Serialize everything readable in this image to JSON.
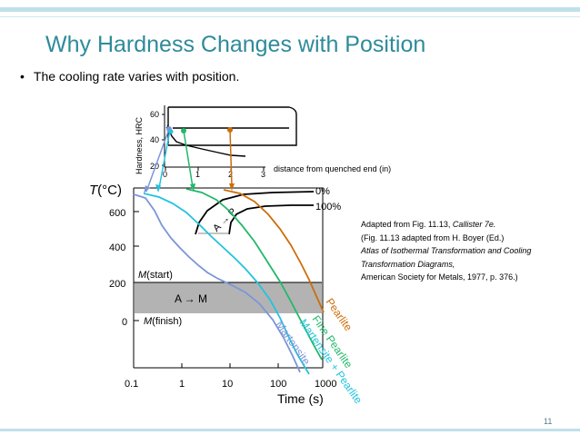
{
  "slide": {
    "title": "Why Hardness Changes with Position",
    "bullet": "The cooling rate varies with position.",
    "page_number": "11"
  },
  "credit": {
    "line1_pre": "Adapted from Fig. 11.13, ",
    "line1_italic": "Callister 7e.",
    "line2": "(Fig. 11.13 adapted from H. Boyer (Ed.)",
    "line3_italic": "Atlas of Isothermal Transformation and Cooling Transformation Diagrams,",
    "line4": "American Society for Metals, 1977, p. 376.)"
  },
  "hardness_plot": {
    "ylabel": "Hardness, HRC",
    "yticks": [
      "60",
      "40",
      "20"
    ],
    "xticks": [
      "0",
      "1",
      "2",
      "3"
    ],
    "xlabel": "distance from quenched end (in)"
  },
  "ttt_plot": {
    "ylabel_italic": "T",
    "ylabel_unit": "(°C)",
    "yticks": [
      "600",
      "400",
      "200",
      "0"
    ],
    "xticks": [
      "0.1",
      "1",
      "10",
      "100",
      "1000"
    ],
    "xlabel": "Time (s)",
    "zero_pct": "0%",
    "hundred_pct": "100%",
    "a_to_p": "A → P",
    "a_to_m": "A → M",
    "m_start_italic": "M",
    "m_start_rest": "(start)",
    "m_finish_italic": "M",
    "m_finish_rest": "(finish)",
    "curve_labels": [
      "Martensite",
      "Martensite + Pearlite",
      "Fine Pearlite",
      "Pearlite"
    ]
  },
  "colors": {
    "title": "#2e8b9a",
    "martensite": "#7b96d8",
    "martensite_pearlite": "#22c3dd",
    "fine_pearlite": "#22b86a",
    "pearlite": "#cc6e0a",
    "a_to_m_band": "#b3b3b3"
  }
}
